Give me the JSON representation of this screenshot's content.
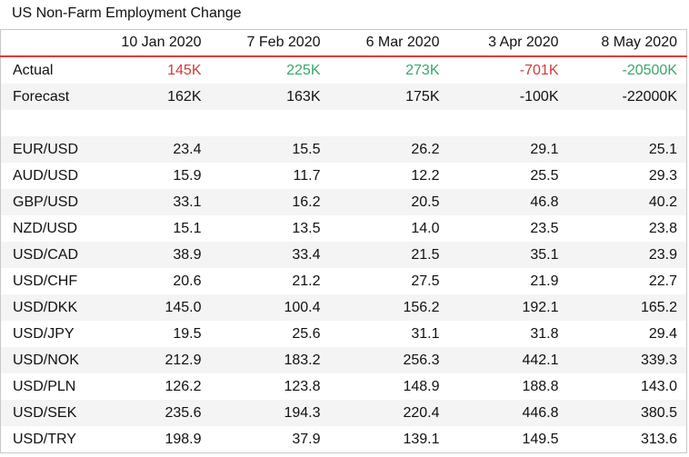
{
  "title": "US Non-Farm Employment Change",
  "columns": [
    "10 Jan 2020",
    "7 Feb 2020",
    "6 Mar 2020",
    "3 Apr 2020",
    "8 May 2020"
  ],
  "actual": {
    "label": "Actual",
    "values": [
      "145K",
      "225K",
      "273K",
      "-701K",
      "-20500K"
    ],
    "colors": [
      "#d23a3a",
      "#3aa66a",
      "#3aa66a",
      "#d23a3a",
      "#3aa66a"
    ]
  },
  "forecast": {
    "label": "Forecast",
    "values": [
      "162K",
      "163K",
      "175K",
      "-100K",
      "-22000K"
    ]
  },
  "pairs": [
    {
      "label": "EUR/USD",
      "values": [
        "23.4",
        "15.5",
        "26.2",
        "29.1",
        "25.1"
      ]
    },
    {
      "label": "AUD/USD",
      "values": [
        "15.9",
        "11.7",
        "12.2",
        "25.5",
        "29.3"
      ]
    },
    {
      "label": "GBP/USD",
      "values": [
        "33.1",
        "16.2",
        "20.5",
        "46.8",
        "40.2"
      ]
    },
    {
      "label": "NZD/USD",
      "values": [
        "15.1",
        "13.5",
        "14.0",
        "23.5",
        "23.8"
      ]
    },
    {
      "label": "USD/CAD",
      "values": [
        "38.9",
        "33.4",
        "21.5",
        "35.1",
        "23.9"
      ]
    },
    {
      "label": "USD/CHF",
      "values": [
        "20.6",
        "21.2",
        "27.5",
        "21.9",
        "22.7"
      ]
    },
    {
      "label": "USD/DKK",
      "values": [
        "145.0",
        "100.4",
        "156.2",
        "192.1",
        "165.2"
      ]
    },
    {
      "label": "USD/JPY",
      "values": [
        "19.5",
        "25.6",
        "31.1",
        "31.8",
        "29.4"
      ]
    },
    {
      "label": "USD/NOK",
      "values": [
        "212.9",
        "183.2",
        "256.3",
        "442.1",
        "339.3"
      ]
    },
    {
      "label": "USD/PLN",
      "values": [
        "126.2",
        "123.8",
        "148.9",
        "188.8",
        "143.0"
      ]
    },
    {
      "label": "USD/SEK",
      "values": [
        "235.6",
        "194.3",
        "220.4",
        "446.8",
        "380.5"
      ]
    },
    {
      "label": "USD/TRY",
      "values": [
        "198.9",
        "37.9",
        "139.1",
        "149.5",
        "313.6"
      ]
    }
  ]
}
